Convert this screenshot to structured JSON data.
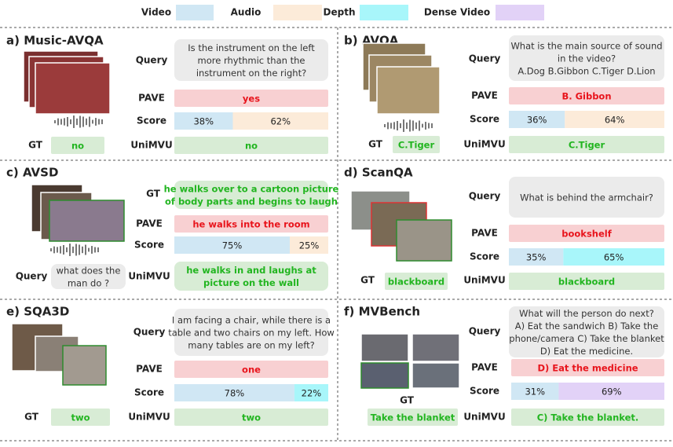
{
  "legend": [
    {
      "label": "Video",
      "color": "#d0e7f4"
    },
    {
      "label": "Audio",
      "color": "#fcebd9"
    },
    {
      "label": "Depth",
      "color": "#a8f6fa"
    },
    {
      "label": "Dense Video",
      "color": "#e2d2f7"
    }
  ],
  "panels": [
    {
      "title": "a) Music-AVQA",
      "items": [
        {
          "label": "Query",
          "lines": [
            "Is the instrument on the left",
            "more rhythmic than the",
            "instrument on the right?"
          ],
          "fill": "#ebebeb",
          "text_color": "#333333"
        },
        {
          "label": "PAVE",
          "lines": [
            "yes"
          ],
          "fill": "#f8d0d2",
          "text_color": "#e8141c"
        },
        {
          "label": "Score",
          "values": [
            38,
            62
          ],
          "value_labels": [
            "38%",
            "62%"
          ],
          "colors": [
            "#d0e7f4",
            "#fcebd9"
          ]
        },
        {
          "label": "UniMVU",
          "lines": [
            "no"
          ],
          "fill": "#d8ecd5",
          "text_color": "#22b520"
        },
        {
          "label": "GT",
          "lines": [
            "no"
          ],
          "fill": "#d8ecd5",
          "text_color": "#22b520"
        }
      ]
    },
    {
      "title": "b) AVQA",
      "items": [
        {
          "label": "Query",
          "lines": [
            "What is the main source of sound",
            "in the video?",
            "A.Dog B.Gibbon C.Tiger D.Lion"
          ],
          "fill": "#ebebeb",
          "text_color": "#333333"
        },
        {
          "label": "PAVE",
          "lines": [
            "B. Gibbon"
          ],
          "fill": "#f8d0d2",
          "text_color": "#e8141c"
        },
        {
          "label": "Score",
          "values": [
            36,
            64
          ],
          "value_labels": [
            "36%",
            "64%"
          ],
          "colors": [
            "#d0e7f4",
            "#fcebd9"
          ]
        },
        {
          "label": "UniMVU",
          "lines": [
            "C.Tiger"
          ],
          "fill": "#d8ecd5",
          "text_color": "#22b520"
        },
        {
          "label": "GT",
          "lines": [
            "C.Tiger"
          ],
          "fill": "#d8ecd5",
          "text_color": "#22b520"
        }
      ]
    },
    {
      "title": "c) AVSD",
      "items": [
        {
          "label": "GT",
          "lines": [
            "he walks over to a cartoon picture",
            "of body parts and begins to laugh"
          ],
          "fill": "#d8ecd5",
          "text_color": "#22b520"
        },
        {
          "label": "PAVE",
          "lines": [
            "he walks into the room"
          ],
          "fill": "#f8d0d2",
          "text_color": "#e8141c"
        },
        {
          "label": "Score",
          "values": [
            75,
            25
          ],
          "value_labels": [
            "75%",
            "25%"
          ],
          "colors": [
            "#d0e7f4",
            "#fcebd9"
          ]
        },
        {
          "label": "UniMVU",
          "lines": [
            "he walks in and laughs at",
            "picture on the wall"
          ],
          "fill": "#d8ecd5",
          "text_color": "#22b520"
        },
        {
          "label": "Query",
          "lines": [
            "what does the",
            "man do ?"
          ],
          "fill": "#ebebeb",
          "text_color": "#333333"
        }
      ]
    },
    {
      "title": "d) ScanQA",
      "items": [
        {
          "label": "Query",
          "lines": [
            "What is behind the armchair?"
          ],
          "fill": "#ebebeb",
          "text_color": "#333333"
        },
        {
          "label": "PAVE",
          "lines": [
            "bookshelf"
          ],
          "fill": "#f8d0d2",
          "text_color": "#e8141c"
        },
        {
          "label": "Score",
          "values": [
            35,
            65
          ],
          "value_labels": [
            "35%",
            "65%"
          ],
          "colors": [
            "#d0e7f4",
            "#a8f6fa"
          ]
        },
        {
          "label": "UniMVU",
          "lines": [
            "blackboard"
          ],
          "fill": "#d8ecd5",
          "text_color": "#22b520"
        },
        {
          "label": "GT",
          "lines": [
            "blackboard"
          ],
          "fill": "#d8ecd5",
          "text_color": "#22b520"
        }
      ]
    },
    {
      "title": "e) SQA3D",
      "items": [
        {
          "label": "Query",
          "lines": [
            "I am facing a chair, while there is a",
            "table and two chairs on my left. How",
            "many tables are on my left?"
          ],
          "fill": "#ebebeb",
          "text_color": "#333333"
        },
        {
          "label": "PAVE",
          "lines": [
            "one"
          ],
          "fill": "#f8d0d2",
          "text_color": "#e8141c"
        },
        {
          "label": "Score",
          "values": [
            78,
            22
          ],
          "value_labels": [
            "78%",
            "22%"
          ],
          "colors": [
            "#d0e7f4",
            "#a8f6fa"
          ]
        },
        {
          "label": "UniMVU",
          "lines": [
            "two"
          ],
          "fill": "#d8ecd5",
          "text_color": "#22b520"
        },
        {
          "label": "GT",
          "lines": [
            "two"
          ],
          "fill": "#d8ecd5",
          "text_color": "#22b520"
        }
      ]
    },
    {
      "title": "f) MVBench",
      "items": [
        {
          "label": "Query",
          "lines": [
            "What will the person do next?",
            "A) Eat the sandwich B) Take the",
            "phone/camera C) Take the blanket",
            "D) Eat the medicine."
          ],
          "fill": "#ebebeb",
          "text_color": "#333333"
        },
        {
          "label": "PAVE",
          "lines": [
            "D) Eat the medicine"
          ],
          "fill": "#f8d0d2",
          "text_color": "#e8141c"
        },
        {
          "label": "Score",
          "values": [
            31,
            69
          ],
          "value_labels": [
            "31%",
            "69%"
          ],
          "colors": [
            "#d0e7f4",
            "#e2d2f7"
          ]
        },
        {
          "label": "UniMVU",
          "lines": [
            "C) Take the blanket."
          ],
          "fill": "#d8ecd5",
          "text_color": "#22b520"
        },
        {
          "label": "GT",
          "lines": [
            "Take the blanket"
          ],
          "fill": "#d8ecd5",
          "text_color": "#22b520"
        }
      ]
    }
  ]
}
